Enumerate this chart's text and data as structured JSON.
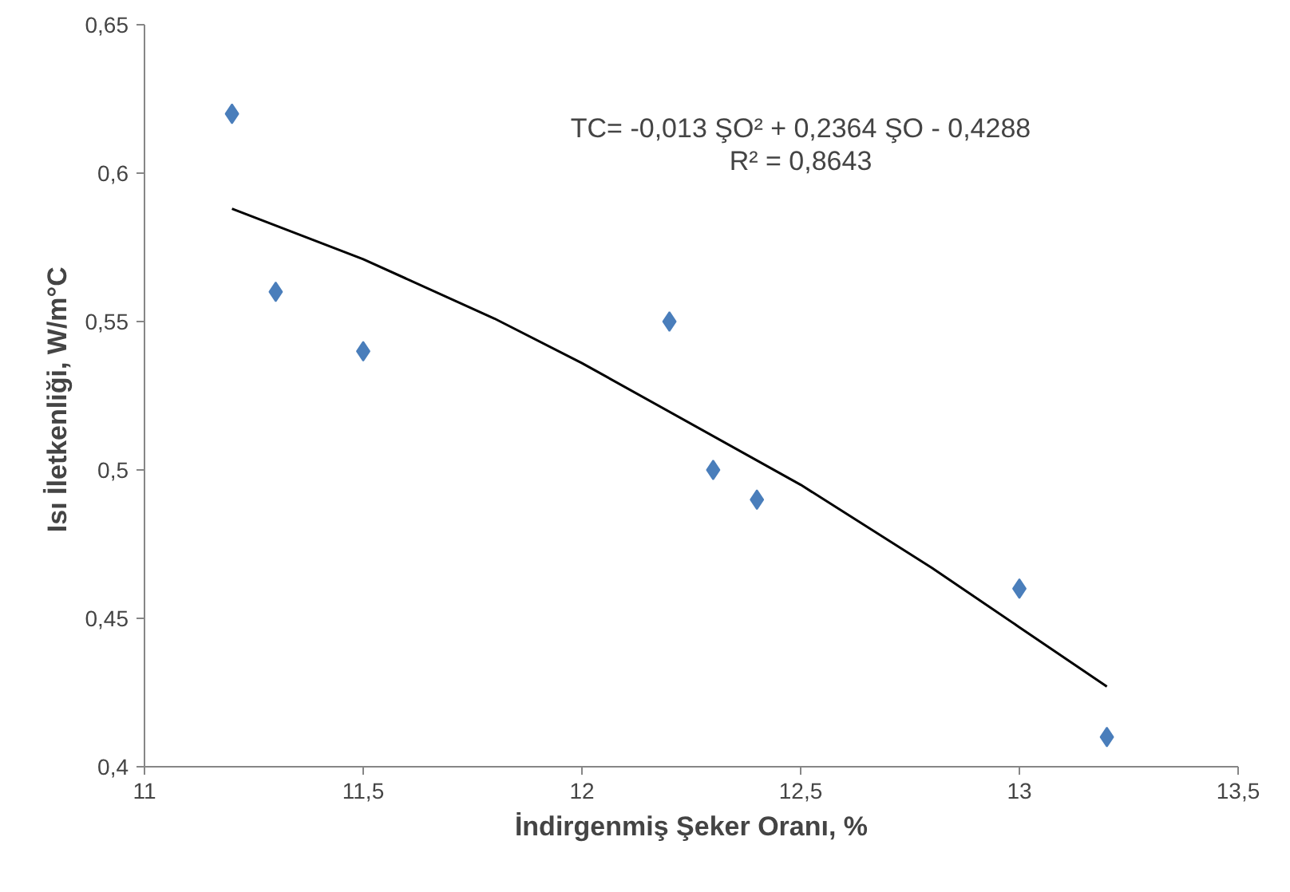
{
  "chart_data": {
    "type": "scatter",
    "xlabel": "İndirgenmiş Şeker Oranı, %",
    "ylabel": "Isı İletkenliği,  W/m°C",
    "annotations": [
      "TC= -0,013 ŞO² + 0,2364 ŞO - 0,4288",
      "R² = 0,8643"
    ],
    "marker": "diamond",
    "grid": false,
    "xlim": [
      11,
      13.5
    ],
    "xticks": [
      {
        "value": 11,
        "label": "11"
      },
      {
        "value": 11.5,
        "label": "11,5"
      },
      {
        "value": 12,
        "label": "12"
      },
      {
        "value": 12.5,
        "label": "12,5"
      },
      {
        "value": 13,
        "label": "13"
      },
      {
        "value": 13.5,
        "label": "13,5"
      }
    ],
    "ylim": [
      0.4,
      0.65
    ],
    "yticks": [
      {
        "value": 0.4,
        "label": "0,4"
      },
      {
        "value": 0.45,
        "label": "0,45"
      },
      {
        "value": 0.5,
        "label": "0,5"
      },
      {
        "value": 0.55,
        "label": "0,55"
      },
      {
        "value": 0.6,
        "label": "0,6"
      },
      {
        "value": 0.65,
        "label": "0,65"
      }
    ],
    "series": [
      {
        "color": "#4a7ebb",
        "x": [
          11.2,
          11.3,
          11.5,
          12.2,
          12.3,
          12.4,
          13,
          13.2
        ],
        "values": [
          0.62,
          0.56,
          0.54,
          0.55,
          0.5,
          0.49,
          0.46,
          0.41
        ]
      },
      {
        "type": "line",
        "marker": "none",
        "color": "#000000",
        "x": [
          11.2,
          11.5,
          11.8,
          12,
          12.5,
          12.8,
          13,
          13.2
        ],
        "values": [
          0.588,
          0.571,
          0.551,
          0.536,
          0.495,
          0.467,
          0.447,
          0.427
        ]
      }
    ]
  }
}
